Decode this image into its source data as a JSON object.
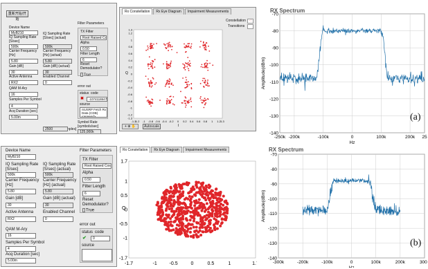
{
  "top": {
    "start_button": "重新开始/开始",
    "device_name_label": "Device Name",
    "device_name_value": "MyB210",
    "iq_rate_label": "IQ Sampling Rate [S/sec]",
    "iq_rate_value": "500k",
    "iq_rate_actual_label": "IQ Sampling Rate [S/sec] (actual)",
    "iq_rate_actual_value": "500k",
    "carrier_label": "Carrier Frequency [Hz]",
    "carrier_value": "5.80",
    "carrier_actual_label": "Carrier Frequency [Hz] (actual)",
    "carrier_actual_value": "5.80",
    "gain_label": "Gain [dB]",
    "gain_value": "30",
    "gain_actual_label": "Gain [dB] (actual)",
    "gain_actual_value": "30",
    "antenna_label": "Active Antenna",
    "antenna_value": "RX2",
    "channel_label": "Enabled Channel",
    "channel_value": "0",
    "qam_label": "QAM M-Ary",
    "qam_value": "16",
    "sps_label": "Samples Per Symbol",
    "sps_value": "4",
    "acq_label": "Acq Duration [sec]",
    "acq_value": "5.00m",
    "frame_label": "Frame Size [samples]",
    "frame_value": "2500",
    "filter_params": "Filter Parameters",
    "tx_filter_label": "TX Filter",
    "tx_filter_value": "Root Raised Cos",
    "alpha_label": "Alpha",
    "alpha_value": "0.50",
    "filter_len_label": "Filter Length",
    "filter_len_value": "6",
    "reset_label": "Reset Demodulator?",
    "reset_toggle": "True",
    "error_out": "error out",
    "status_label": "status",
    "code_label": "code",
    "code_value": "-1074118647",
    "source_label": "source",
    "source_value": "niUSRP Fetch Rx Data (CDB) <append>",
    "symrate_label": "Symbol Rate [symbols/sec]",
    "symrate_value": "125,000k",
    "tabs": [
      "Rx Constellation",
      "Rx Eye Diagram",
      "Impairment Measurements"
    ],
    "legend_constellation": "Constellation",
    "legend_transitions": "Transitions",
    "autoscale": "Autoscale",
    "const_yaxis": "Q",
    "const_xaxis": "I",
    "spectrum_title": "RX Spectrum",
    "caption": "(a)"
  },
  "bottom": {
    "device_name_label": "Device Name",
    "device_name_value": "MyB210",
    "iq_rate_label": "IQ Sampling Rate [S/sec]",
    "iq_rate_value": "500k",
    "iq_rate_actual_label": "IQ Sampling Rate [S/sec] (actual)",
    "iq_rate_actual_value": "500k",
    "carrier_label": "Carrier Frequency [Hz]",
    "carrier_value": "5.80",
    "carrier_actual_label": "Carrier Frequency [Hz] (actual)",
    "carrier_actual_value": "5.80",
    "gain_label": "Gain [dB]",
    "gain_value": "30",
    "gain_actual_label": "Gain [dB] (actual)",
    "gain_actual_value": "30",
    "antenna_label": "Active Antenna",
    "antenna_value": "RX2",
    "channel_label": "Enabled Channel",
    "channel_value": "0",
    "qam_label": "QAM M-Ary",
    "qam_value": "16",
    "sps_label": "Samples Per Symbol",
    "sps_value": "4",
    "acq_label": "Acq Duration [sec]",
    "acq_value": "5.00m",
    "filter_params": "Filter Parameters",
    "tx_filter_label": "TX Filter",
    "tx_filter_value": "Root Raised Cos",
    "alpha_label": "Alpha",
    "alpha_value": "0.50",
    "filter_len_label": "Filter Length",
    "filter_len_value": "6",
    "reset_label": "Reset Demodulator?",
    "reset_toggle": "True",
    "error_out": "error out",
    "status_label": "status",
    "code_label": "code",
    "code_value": "0",
    "source_label": "source",
    "tabs": [
      "Rx Constellation",
      "Rx Eye Diagram",
      "Impairment Measurements"
    ],
    "const_yaxis": "Q",
    "spectrum_title": "RX Spectrum",
    "caption": "(b)"
  },
  "colors": {
    "constellation": "#e0262a",
    "spectrum": "#1f6fa8",
    "panel": "#ececec"
  },
  "chart_data": [
    {
      "type": "scatter",
      "title": "",
      "xlabel": "I",
      "ylabel": "Q",
      "xlim": [
        -1.3,
        1.3
      ],
      "ylim": [
        -1.3,
        1.3
      ],
      "xticks": [
        "-1.3",
        "-1.2",
        "-1",
        "-0.8",
        "-0.6",
        "-0.4",
        "-0.2",
        "0",
        "0.2",
        "0.4",
        "0.6",
        "0.8",
        "1",
        "1.2",
        "1.3"
      ],
      "yticks": [
        "1.3",
        "1.2",
        "1",
        "0.8",
        "0.6",
        "0.4",
        "0.2",
        "0",
        "-0.2",
        "-0.4",
        "-0.6",
        "-0.8",
        "-1",
        "-1.2",
        "-1.3"
      ],
      "clusters": [
        -0.8,
        -0.27,
        0.27,
        0.8
      ],
      "spread": 0.07
    },
    {
      "type": "line",
      "title": "RX Spectrum",
      "xlabel": "Hz",
      "ylabel": "Amplitude(dBm)",
      "xlim": [
        -250000,
        250000
      ],
      "ylim": [
        -140,
        -70
      ],
      "xticks": [
        "-250k",
        "-200k",
        "-100k",
        "0",
        "100k",
        "200k",
        "25"
      ],
      "yticks": [
        "-70",
        "-80",
        "-90",
        "-100",
        "-110",
        "-120",
        "-130",
        "-140"
      ],
      "noise_floor": -108,
      "peak": -80,
      "edge": 100000,
      "rolloff": 25000
    },
    {
      "type": "scatter",
      "title": "",
      "ylabel": "Q",
      "xlim": [
        -1.7,
        1.7
      ],
      "ylim": [
        -1.7,
        1.7
      ],
      "xticks": [
        "-1.7",
        "-1",
        "-0.5",
        "0",
        "0.5",
        "1",
        "1.7"
      ],
      "yticks": [
        "1.7",
        "1",
        "0.5",
        "0",
        "-0.5",
        "-1",
        "-1.7"
      ],
      "radius": 0.98
    },
    {
      "type": "line",
      "title": "RX Spectrum",
      "xlabel": "Hz",
      "ylabel": "Amplitude(dBm)",
      "xlim": [
        -300000,
        300000
      ],
      "ylim": [
        -140,
        -70
      ],
      "xticks": [
        "-300k",
        "-200k",
        "-100k",
        "0",
        "100k",
        "200k",
        "300k"
      ],
      "yticks": [
        "-70",
        "-80",
        "-90",
        "-100",
        "-110",
        "-120",
        "-130",
        "-140"
      ],
      "noise_floor": -108,
      "peak": -88,
      "edge": 70000,
      "rolloff": 35000,
      "span": [
        -200000,
        200000
      ]
    }
  ]
}
